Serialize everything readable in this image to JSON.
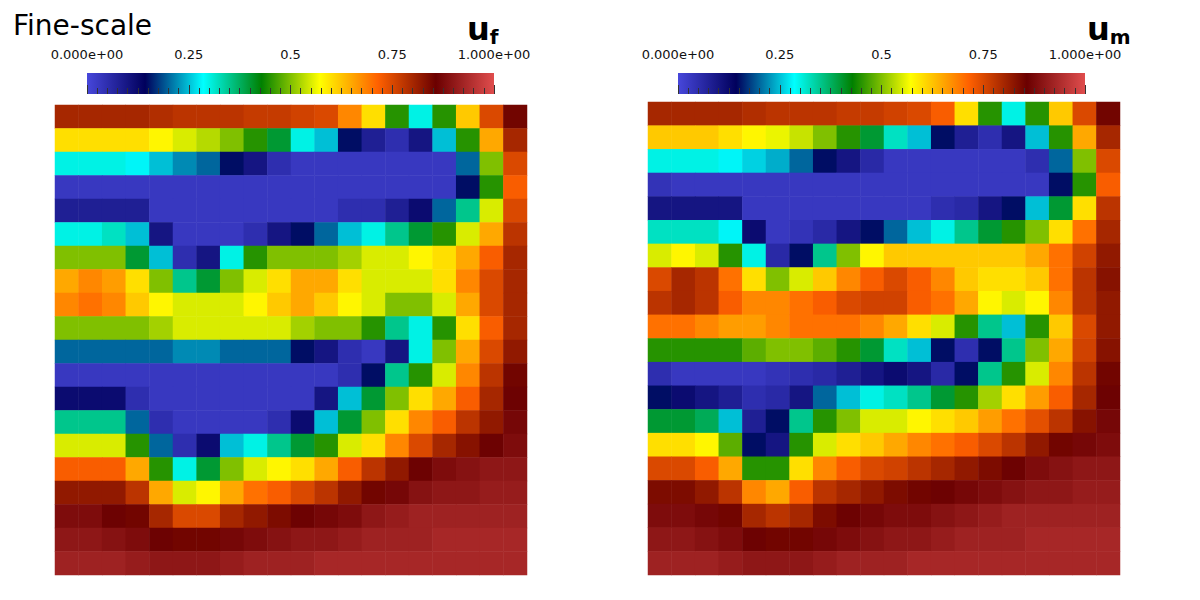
{
  "chart_data": [
    {
      "type": "heatmap",
      "title": "Fine-scale",
      "field_label": {
        "text": "u",
        "subscript": "f"
      },
      "colorbar": {
        "range": [
          0,
          1
        ],
        "ticks": [
          {
            "value": 0,
            "label": "0.000e+00"
          },
          0.25,
          0.5,
          0.75,
          {
            "value": 1,
            "label": "1.000e+00"
          }
        ]
      },
      "cells": [
        [
          0.8,
          0.8,
          0.8,
          0.8,
          0.79,
          0.78,
          0.78,
          0.78,
          0.77,
          0.77,
          0.76,
          0.75,
          0.68,
          0.6,
          0.45,
          0.3,
          0.45,
          0.62,
          0.75,
          0.85
        ],
        [
          0.6,
          0.6,
          0.6,
          0.6,
          0.58,
          0.55,
          0.53,
          0.5,
          0.45,
          0.4,
          0.3,
          0.25,
          0.15,
          0.08,
          0.05,
          0.1,
          0.25,
          0.45,
          0.65,
          0.8
        ],
        [
          0.3,
          0.3,
          0.3,
          0.28,
          0.25,
          0.22,
          0.2,
          0.15,
          0.1,
          0.05,
          0.03,
          0.03,
          0.03,
          0.03,
          0.03,
          0.03,
          0.03,
          0.2,
          0.5,
          0.75
        ],
        [
          0.03,
          0.03,
          0.03,
          0.03,
          0.03,
          0.03,
          0.03,
          0.03,
          0.03,
          0.03,
          0.03,
          0.03,
          0.03,
          0.03,
          0.03,
          0.03,
          0.03,
          0.15,
          0.45,
          0.72
        ],
        [
          0.08,
          0.08,
          0.08,
          0.08,
          0.03,
          0.03,
          0.03,
          0.03,
          0.03,
          0.03,
          0.03,
          0.03,
          0.05,
          0.05,
          0.08,
          0.12,
          0.2,
          0.35,
          0.55,
          0.75
        ],
        [
          0.3,
          0.3,
          0.32,
          0.25,
          0.1,
          0.03,
          0.03,
          0.03,
          0.05,
          0.1,
          0.15,
          0.2,
          0.25,
          0.3,
          0.35,
          0.4,
          0.45,
          0.55,
          0.65,
          0.78
        ],
        [
          0.5,
          0.5,
          0.5,
          0.4,
          0.25,
          0.05,
          0.1,
          0.3,
          0.45,
          0.5,
          0.5,
          0.5,
          0.52,
          0.55,
          0.55,
          0.58,
          0.6,
          0.65,
          0.72,
          0.8
        ],
        [
          0.65,
          0.68,
          0.66,
          0.6,
          0.5,
          0.35,
          0.4,
          0.5,
          0.55,
          0.6,
          0.65,
          0.65,
          0.6,
          0.55,
          0.55,
          0.55,
          0.6,
          0.68,
          0.75,
          0.8
        ],
        [
          0.68,
          0.7,
          0.68,
          0.62,
          0.58,
          0.55,
          0.55,
          0.55,
          0.58,
          0.62,
          0.65,
          0.62,
          0.58,
          0.55,
          0.5,
          0.5,
          0.55,
          0.65,
          0.75,
          0.8
        ],
        [
          0.5,
          0.5,
          0.5,
          0.5,
          0.52,
          0.55,
          0.55,
          0.55,
          0.55,
          0.55,
          0.52,
          0.5,
          0.5,
          0.45,
          0.35,
          0.3,
          0.45,
          0.6,
          0.72,
          0.8
        ],
        [
          0.2,
          0.2,
          0.2,
          0.2,
          0.2,
          0.22,
          0.22,
          0.2,
          0.2,
          0.2,
          0.15,
          0.1,
          0.05,
          0.03,
          0.1,
          0.3,
          0.5,
          0.65,
          0.75,
          0.82
        ],
        [
          0.03,
          0.03,
          0.03,
          0.03,
          0.03,
          0.03,
          0.03,
          0.03,
          0.03,
          0.03,
          0.03,
          0.03,
          0.05,
          0.15,
          0.35,
          0.45,
          0.55,
          0.68,
          0.78,
          0.85
        ],
        [
          0.12,
          0.12,
          0.12,
          0.05,
          0.03,
          0.03,
          0.03,
          0.03,
          0.03,
          0.03,
          0.03,
          0.1,
          0.25,
          0.4,
          0.5,
          0.6,
          0.65,
          0.72,
          0.8,
          0.86
        ],
        [
          0.35,
          0.35,
          0.35,
          0.2,
          0.05,
          0.03,
          0.03,
          0.03,
          0.03,
          0.05,
          0.12,
          0.25,
          0.4,
          0.5,
          0.6,
          0.68,
          0.72,
          0.78,
          0.82,
          0.87
        ],
        [
          0.55,
          0.55,
          0.55,
          0.45,
          0.2,
          0.05,
          0.12,
          0.25,
          0.3,
          0.35,
          0.4,
          0.45,
          0.55,
          0.6,
          0.68,
          0.75,
          0.8,
          0.83,
          0.86,
          0.88
        ],
        [
          0.72,
          0.72,
          0.72,
          0.65,
          0.45,
          0.3,
          0.4,
          0.5,
          0.55,
          0.58,
          0.6,
          0.65,
          0.72,
          0.78,
          0.82,
          0.86,
          0.88,
          0.89,
          0.9,
          0.9
        ],
        [
          0.82,
          0.82,
          0.82,
          0.78,
          0.65,
          0.55,
          0.58,
          0.65,
          0.7,
          0.72,
          0.75,
          0.78,
          0.82,
          0.85,
          0.87,
          0.89,
          0.9,
          0.9,
          0.91,
          0.91
        ],
        [
          0.88,
          0.88,
          0.86,
          0.85,
          0.8,
          0.75,
          0.75,
          0.8,
          0.82,
          0.84,
          0.86,
          0.87,
          0.88,
          0.9,
          0.91,
          0.92,
          0.92,
          0.92,
          0.92,
          0.92
        ],
        [
          0.9,
          0.9,
          0.89,
          0.88,
          0.86,
          0.85,
          0.85,
          0.87,
          0.88,
          0.89,
          0.9,
          0.9,
          0.91,
          0.92,
          0.92,
          0.92,
          0.93,
          0.93,
          0.93,
          0.93
        ],
        [
          0.92,
          0.92,
          0.92,
          0.91,
          0.9,
          0.9,
          0.9,
          0.91,
          0.92,
          0.92,
          0.92,
          0.93,
          0.93,
          0.93,
          0.93,
          0.93,
          0.93,
          0.93,
          0.93,
          0.93
        ]
      ]
    },
    {
      "type": "heatmap",
      "field_label": {
        "text": "u",
        "subscript": "m"
      },
      "colorbar": {
        "range": [
          0,
          1
        ],
        "ticks": [
          {
            "value": 0,
            "label": "0.000e+00"
          },
          0.25,
          0.5,
          0.75,
          {
            "value": 1,
            "label": "1.000e+00"
          }
        ]
      },
      "cells": [
        [
          0.8,
          0.8,
          0.8,
          0.8,
          0.79,
          0.78,
          0.78,
          0.78,
          0.77,
          0.77,
          0.76,
          0.75,
          0.72,
          0.6,
          0.45,
          0.3,
          0.45,
          0.62,
          0.75,
          0.85
        ],
        [
          0.62,
          0.62,
          0.62,
          0.6,
          0.58,
          0.56,
          0.54,
          0.5,
          0.45,
          0.4,
          0.32,
          0.25,
          0.15,
          0.08,
          0.05,
          0.1,
          0.25,
          0.45,
          0.65,
          0.8
        ],
        [
          0.3,
          0.3,
          0.3,
          0.28,
          0.26,
          0.24,
          0.2,
          0.15,
          0.1,
          0.06,
          0.03,
          0.03,
          0.03,
          0.03,
          0.03,
          0.03,
          0.05,
          0.2,
          0.5,
          0.75
        ],
        [
          0.04,
          0.03,
          0.03,
          0.03,
          0.03,
          0.03,
          0.03,
          0.03,
          0.03,
          0.03,
          0.03,
          0.03,
          0.03,
          0.03,
          0.03,
          0.03,
          0.03,
          0.15,
          0.45,
          0.72
        ],
        [
          0.1,
          0.1,
          0.1,
          0.1,
          0.03,
          0.03,
          0.03,
          0.03,
          0.03,
          0.03,
          0.03,
          0.03,
          0.05,
          0.06,
          0.1,
          0.15,
          0.25,
          0.4,
          0.6,
          0.78
        ],
        [
          0.32,
          0.32,
          0.32,
          0.28,
          0.12,
          0.03,
          0.04,
          0.06,
          0.1,
          0.15,
          0.2,
          0.25,
          0.3,
          0.35,
          0.4,
          0.45,
          0.5,
          0.6,
          0.7,
          0.8
        ],
        [
          0.55,
          0.58,
          0.55,
          0.45,
          0.3,
          0.06,
          0.15,
          0.35,
          0.5,
          0.58,
          0.62,
          0.62,
          0.62,
          0.62,
          0.62,
          0.62,
          0.65,
          0.7,
          0.76,
          0.82
        ],
        [
          0.75,
          0.8,
          0.78,
          0.7,
          0.6,
          0.5,
          0.55,
          0.62,
          0.68,
          0.72,
          0.75,
          0.72,
          0.68,
          0.62,
          0.6,
          0.6,
          0.62,
          0.7,
          0.78,
          0.83
        ],
        [
          0.78,
          0.8,
          0.78,
          0.72,
          0.68,
          0.68,
          0.7,
          0.72,
          0.75,
          0.76,
          0.76,
          0.72,
          0.7,
          0.65,
          0.58,
          0.55,
          0.58,
          0.68,
          0.78,
          0.82
        ],
        [
          0.7,
          0.7,
          0.68,
          0.66,
          0.66,
          0.68,
          0.7,
          0.7,
          0.7,
          0.68,
          0.65,
          0.6,
          0.55,
          0.45,
          0.35,
          0.25,
          0.45,
          0.62,
          0.75,
          0.82
        ],
        [
          0.45,
          0.45,
          0.45,
          0.45,
          0.48,
          0.5,
          0.5,
          0.48,
          0.45,
          0.4,
          0.32,
          0.25,
          0.15,
          0.05,
          0.15,
          0.35,
          0.5,
          0.65,
          0.76,
          0.83
        ],
        [
          0.05,
          0.03,
          0.03,
          0.03,
          0.03,
          0.04,
          0.05,
          0.06,
          0.08,
          0.1,
          0.12,
          0.1,
          0.06,
          0.15,
          0.35,
          0.45,
          0.55,
          0.68,
          0.78,
          0.85
        ],
        [
          0.15,
          0.12,
          0.1,
          0.08,
          0.05,
          0.06,
          0.1,
          0.2,
          0.25,
          0.3,
          0.32,
          0.35,
          0.4,
          0.45,
          0.52,
          0.6,
          0.66,
          0.72,
          0.8,
          0.86
        ],
        [
          0.4,
          0.4,
          0.38,
          0.25,
          0.08,
          0.15,
          0.35,
          0.45,
          0.5,
          0.55,
          0.55,
          0.58,
          0.6,
          0.62,
          0.66,
          0.7,
          0.74,
          0.78,
          0.83,
          0.87
        ],
        [
          0.6,
          0.6,
          0.58,
          0.48,
          0.15,
          0.1,
          0.45,
          0.55,
          0.6,
          0.62,
          0.65,
          0.68,
          0.7,
          0.72,
          0.75,
          0.78,
          0.82,
          0.85,
          0.87,
          0.88
        ],
        [
          0.75,
          0.75,
          0.72,
          0.65,
          0.45,
          0.45,
          0.6,
          0.68,
          0.72,
          0.75,
          0.76,
          0.78,
          0.8,
          0.82,
          0.84,
          0.86,
          0.88,
          0.89,
          0.9,
          0.9
        ],
        [
          0.84,
          0.84,
          0.82,
          0.78,
          0.68,
          0.65,
          0.72,
          0.78,
          0.8,
          0.82,
          0.84,
          0.85,
          0.86,
          0.87,
          0.88,
          0.89,
          0.9,
          0.9,
          0.91,
          0.91
        ],
        [
          0.88,
          0.88,
          0.87,
          0.85,
          0.8,
          0.78,
          0.8,
          0.84,
          0.86,
          0.87,
          0.88,
          0.88,
          0.89,
          0.9,
          0.91,
          0.92,
          0.92,
          0.92,
          0.92,
          0.92
        ],
        [
          0.9,
          0.9,
          0.89,
          0.88,
          0.86,
          0.85,
          0.85,
          0.87,
          0.88,
          0.89,
          0.9,
          0.9,
          0.91,
          0.92,
          0.92,
          0.92,
          0.93,
          0.93,
          0.93,
          0.93
        ],
        [
          0.92,
          0.92,
          0.92,
          0.91,
          0.9,
          0.9,
          0.9,
          0.91,
          0.92,
          0.92,
          0.92,
          0.93,
          0.93,
          0.93,
          0.93,
          0.93,
          0.93,
          0.93,
          0.93,
          0.93
        ]
      ]
    }
  ]
}
